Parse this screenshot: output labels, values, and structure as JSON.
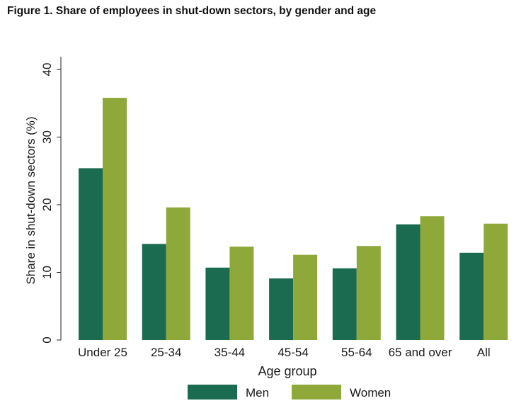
{
  "figure": {
    "title": "Figure 1. Share of employees in shut-down sectors, by gender and age"
  },
  "chart_data": {
    "type": "bar",
    "categories": [
      "Under 25",
      "25-34",
      "35-44",
      "45-54",
      "55-64",
      "65 and over",
      "All"
    ],
    "series": [
      {
        "name": "Men",
        "color": "#1a6b50",
        "values": [
          25.4,
          14.2,
          10.7,
          9.1,
          10.6,
          17.1,
          12.9
        ]
      },
      {
        "name": "Women",
        "color": "#8fa83a",
        "values": [
          35.8,
          19.6,
          13.8,
          12.6,
          13.9,
          18.3,
          17.2
        ]
      }
    ],
    "xlabel": "Age group",
    "ylabel": "Share in shut-down sectors (%)",
    "ylim": [
      0,
      40
    ],
    "yticks": [
      "0",
      "10",
      "20",
      "30",
      "40"
    ],
    "grid": false,
    "legend_position": "bottom"
  }
}
